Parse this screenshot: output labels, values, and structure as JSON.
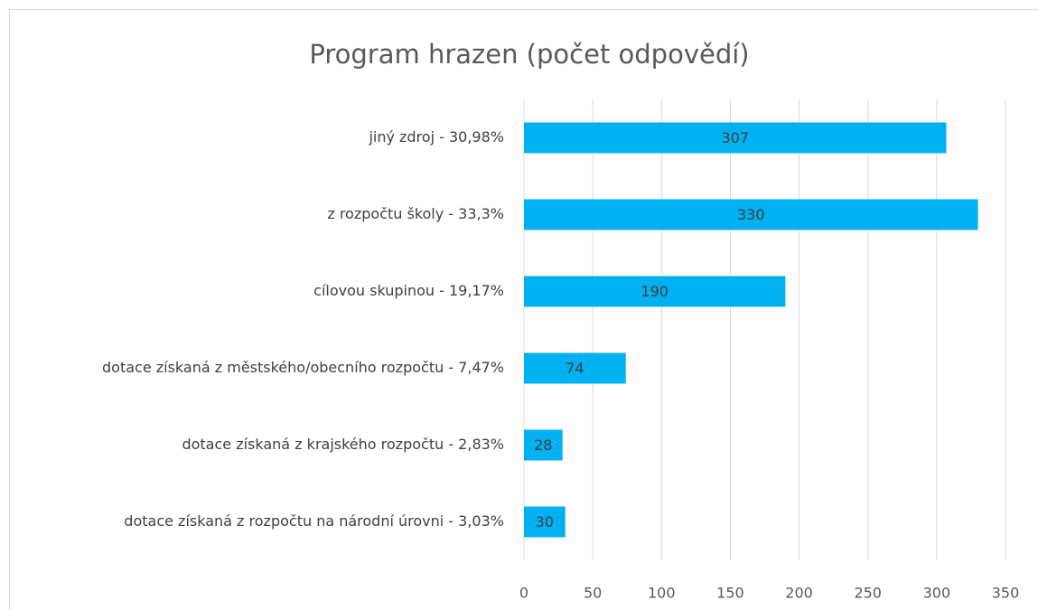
{
  "chart_data": {
    "type": "bar",
    "orientation": "horizontal",
    "title": "Program hrazen (počet odpovědí)",
    "categories": [
      "jiný zdroj - 30,98%",
      "z rozpočtu školy - 33,3%",
      "cílovou skupinou - 19,17%",
      "dotace získaná z městského/obecního rozpočtu - 7,47%",
      "dotace získaná z krajského rozpočtu - 2,83%",
      "dotace získaná z rozpočtu na národní úrovni - 3,03%"
    ],
    "values": [
      307,
      330,
      190,
      74,
      28,
      30
    ],
    "color": "#00b0f0",
    "xlim": [
      0,
      350
    ],
    "xticks": [
      0,
      50,
      100,
      150,
      200,
      250,
      300,
      350
    ],
    "grid": true
  }
}
